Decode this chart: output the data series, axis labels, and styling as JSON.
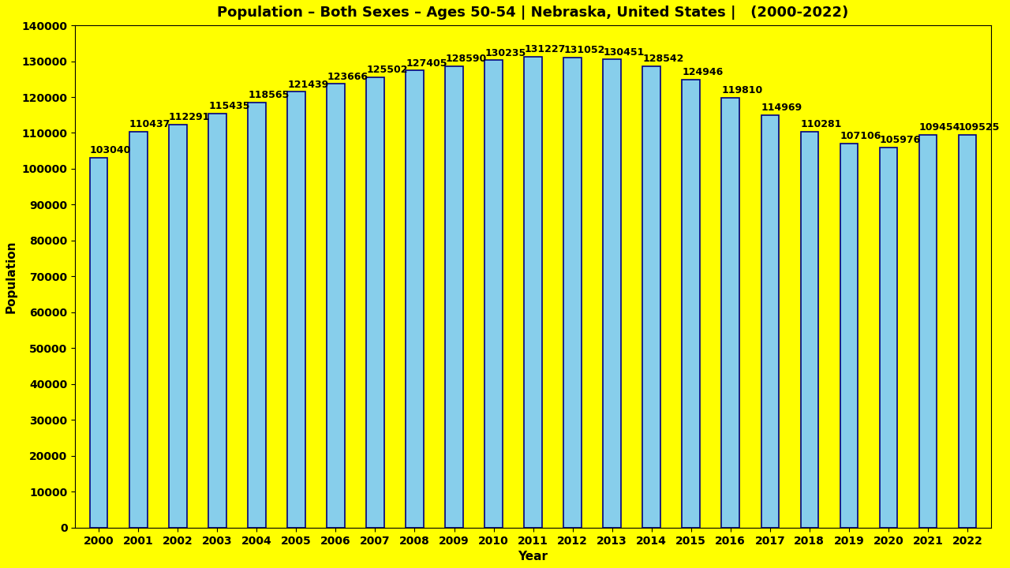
{
  "title": "Population – Both Sexes – Ages 50-54 | Nebraska, United States |   (2000-2022)",
  "xlabel": "Year",
  "ylabel": "Population",
  "background_color": "#FFFF00",
  "bar_color": "#87CEEB",
  "bar_edge_color": "#000080",
  "years": [
    2000,
    2001,
    2002,
    2003,
    2004,
    2005,
    2006,
    2007,
    2008,
    2009,
    2010,
    2011,
    2012,
    2013,
    2014,
    2015,
    2016,
    2017,
    2018,
    2019,
    2020,
    2021,
    2022
  ],
  "values": [
    103040,
    110437,
    112291,
    115435,
    118565,
    121439,
    123666,
    125502,
    127405,
    128590,
    130235,
    131227,
    131052,
    130451,
    128542,
    124946,
    119810,
    114969,
    110281,
    107106,
    105976,
    109454,
    109525
  ],
  "ylim": [
    0,
    140000
  ],
  "ytick_step": 10000,
  "title_fontsize": 13,
  "label_fontsize": 11,
  "tick_fontsize": 10,
  "bar_label_fontsize": 9,
  "bar_width": 0.45
}
